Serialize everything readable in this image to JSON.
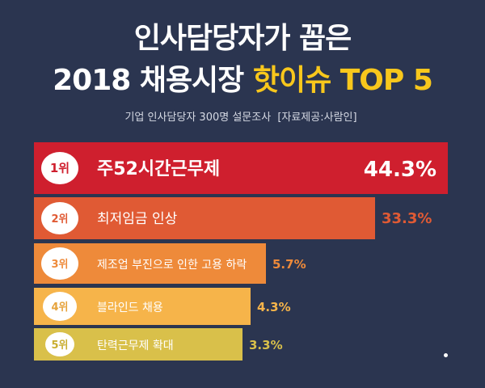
{
  "header": {
    "title_line1": "인사담당자가 꼽은",
    "title_line2_main": "2018 채용시장",
    "title_line2_highlight": "핫이슈 TOP 5",
    "subtitle_survey": "기업 인사담당자 300명 설문조사",
    "subtitle_source": "[자료제공:사람인]"
  },
  "chart_data": {
    "type": "bar",
    "orientation": "horizontal",
    "unit": "%",
    "categories": [
      "주52시간근무제",
      "최저임금 인상",
      "제조업 부진으로 인한 고용 하락",
      "블라인드 채용",
      "탄력근무제 확대"
    ],
    "ranks": [
      "1위",
      "2위",
      "3위",
      "4위",
      "5위"
    ],
    "values": [
      44.3,
      33.3,
      5.7,
      4.3,
      3.3
    ],
    "value_labels": [
      "44.3%",
      "33.3%",
      "5.7%",
      "4.3%",
      "3.3%"
    ],
    "colors": [
      "#cf1f2e",
      "#e05a34",
      "#ee8a3a",
      "#f6b44a",
      "#d9c04a"
    ],
    "value_label_colors": [
      "#ffffff",
      "#e05a34",
      "#ee8a3a",
      "#f6b44a",
      "#d9c04a"
    ],
    "rank_text_colors": [
      "#cf1f2e",
      "#e05a34",
      "#ee8a3a",
      "#e6a33c",
      "#c9ae30"
    ]
  }
}
